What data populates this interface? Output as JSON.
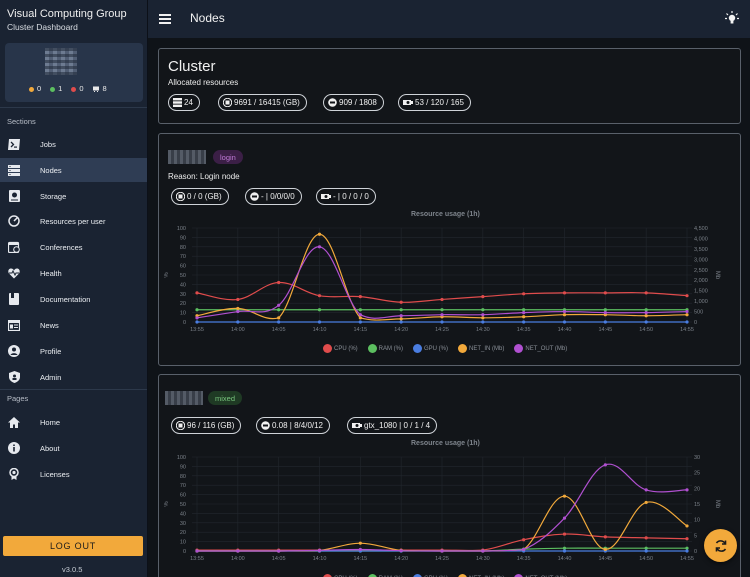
{
  "app": {
    "brand_title": "Visual Computing Group",
    "brand_subtitle": "Cluster Dashboard",
    "page_title": "Nodes",
    "version": "v3.0.5",
    "logout_label": "LOG OUT",
    "accent_color": "#f2a93b"
  },
  "user_stats": [
    {
      "icon": "orange-dot",
      "value": "0",
      "color": "#f2a93b"
    },
    {
      "icon": "green-dot",
      "value": "1",
      "color": "#5cbf60"
    },
    {
      "icon": "red-dot",
      "value": "0",
      "color": "#e04c4c"
    },
    {
      "icon": "gpu-icon",
      "value": "8",
      "color": "#e8e8e8"
    }
  ],
  "sidebar": {
    "sections_label": "Sections",
    "pages_label": "Pages",
    "sections": [
      {
        "label": "Jobs",
        "icon": "terminal-icon"
      },
      {
        "label": "Nodes",
        "icon": "server-icon",
        "active": true
      },
      {
        "label": "Storage",
        "icon": "storage-icon"
      },
      {
        "label": "Resources per user",
        "icon": "gauge-icon"
      },
      {
        "label": "Conferences",
        "icon": "calendar-icon"
      },
      {
        "label": "Health",
        "icon": "heart-pulse-icon"
      },
      {
        "label": "Documentation",
        "icon": "book-icon"
      },
      {
        "label": "News",
        "icon": "news-icon"
      },
      {
        "label": "Profile",
        "icon": "account-icon"
      },
      {
        "label": "Admin",
        "icon": "shield-icon"
      }
    ],
    "pages": [
      {
        "label": "Home",
        "icon": "home-icon"
      },
      {
        "label": "About",
        "icon": "info-icon"
      },
      {
        "label": "Licenses",
        "icon": "license-icon"
      }
    ]
  },
  "cluster": {
    "title": "Cluster",
    "subtitle": "Allocated resources",
    "chips": [
      {
        "icon": "server-icon",
        "text": "24"
      },
      {
        "icon": "memory-icon",
        "text": "9691 / 16415 (GB)"
      },
      {
        "icon": "cpu-icon",
        "text": "909 / 1808"
      },
      {
        "icon": "gpu-icon",
        "text": "53 / 120 / 165"
      }
    ]
  },
  "nodes": [
    {
      "state": "login",
      "reason": "Reason: Login node",
      "chips": [
        {
          "icon": "memory-icon",
          "text": "0 / 0 (GB)"
        },
        {
          "icon": "cpu-icon",
          "text": "- | 0/0/0/0"
        },
        {
          "icon": "gpu-icon",
          "text": "- | 0 / 0 / 0"
        }
      ]
    },
    {
      "state": "mixed",
      "chips": [
        {
          "icon": "memory-icon",
          "text": "96 / 116 (GB)"
        },
        {
          "icon": "cpu-icon",
          "text": "0.08 | 8/4/0/12"
        },
        {
          "icon": "gpu-icon",
          "text": "gtx_1080 | 0 / 1 / 4"
        }
      ]
    }
  ],
  "chart_data": [
    {
      "type": "line",
      "title": "Resource usage (1h)",
      "x": [
        "13:55",
        "14:00",
        "14:05",
        "14:10",
        "14:15",
        "14:20",
        "14:25",
        "14:30",
        "14:35",
        "14:40",
        "14:45",
        "14:50",
        "14:55"
      ],
      "ylabel": "%",
      "y2label": "Mb",
      "ylim": [
        0,
        100
      ],
      "yticks": [
        0,
        10,
        20,
        30,
        40,
        50,
        60,
        70,
        80,
        90,
        100
      ],
      "y2lim": [
        0,
        4500
      ],
      "y2ticks": [
        "0",
        "500",
        "1,000",
        "1,500",
        "2,000",
        "2,500",
        "3,000",
        "3,500",
        "4,000",
        "4,500"
      ],
      "legend": "bottom",
      "grid": true,
      "series": [
        {
          "name": "CPU (%)",
          "axis": "left",
          "color": "#e04c4c",
          "values": [
            31,
            24,
            42,
            28,
            27,
            21,
            24,
            27,
            30,
            31,
            31,
            31,
            28
          ]
        },
        {
          "name": "RAM (%)",
          "axis": "left",
          "color": "#5cbf60",
          "values": [
            13,
            13,
            13,
            13,
            13,
            13,
            13,
            13,
            13,
            13,
            13,
            13,
            13
          ]
        },
        {
          "name": "GPU (%)",
          "axis": "left",
          "color": "#4a7de0",
          "values": [
            0,
            0,
            0,
            0,
            0,
            0,
            0,
            0,
            0,
            0,
            0,
            0,
            0
          ]
        },
        {
          "name": "NET_IN (Mb)",
          "axis": "right",
          "color": "#f2a93b",
          "values": [
            300,
            650,
            200,
            4200,
            200,
            150,
            250,
            200,
            250,
            350,
            350,
            300,
            350
          ]
        },
        {
          "name": "NET_OUT (Mb)",
          "axis": "right",
          "color": "#b050d0",
          "values": [
            200,
            500,
            800,
            3600,
            350,
            300,
            350,
            350,
            450,
            500,
            450,
            450,
            500
          ]
        }
      ]
    },
    {
      "type": "line",
      "title": "Resource usage (1h)",
      "x": [
        "13:55",
        "14:00",
        "14:05",
        "14:10",
        "14:15",
        "14:20",
        "14:25",
        "14:30",
        "14:35",
        "14:40",
        "14:45",
        "14:50",
        "14:55"
      ],
      "ylabel": "%",
      "y2label": "Mb",
      "ylim": [
        0,
        100
      ],
      "yticks": [
        0,
        10,
        20,
        30,
        40,
        50,
        60,
        70,
        80,
        90,
        100
      ],
      "y2lim": [
        0,
        30
      ],
      "y2ticks": [
        "0",
        "5",
        "10",
        "15",
        "20",
        "25",
        "30"
      ],
      "legend": "bottom",
      "grid": true,
      "series": [
        {
          "name": "CPU (%)",
          "axis": "left",
          "color": "#e04c4c",
          "values": [
            1,
            1,
            1,
            1,
            1,
            1,
            1,
            1,
            12,
            18,
            15,
            14,
            13
          ]
        },
        {
          "name": "RAM (%)",
          "axis": "left",
          "color": "#5cbf60",
          "values": [
            0,
            0,
            0,
            0,
            0,
            0,
            0,
            0,
            2,
            3,
            3,
            3,
            3
          ]
        },
        {
          "name": "GPU (%)",
          "axis": "left",
          "color": "#4a7de0",
          "values": [
            0,
            0,
            0,
            0,
            0,
            0,
            0,
            0,
            0,
            0,
            0,
            0,
            0
          ]
        },
        {
          "name": "NET_IN (Mb)",
          "axis": "right",
          "color": "#f2a93b",
          "values": [
            0,
            0,
            0,
            0.2,
            2.5,
            0.2,
            0,
            0,
            0.5,
            17.5,
            0.5,
            15.5,
            8
          ]
        },
        {
          "name": "NET_OUT (Mb)",
          "axis": "right",
          "color": "#b050d0",
          "values": [
            0,
            0,
            0,
            0.2,
            0.5,
            0.1,
            0,
            0,
            0.5,
            10.5,
            27.5,
            19.5,
            19.5
          ]
        }
      ]
    }
  ]
}
